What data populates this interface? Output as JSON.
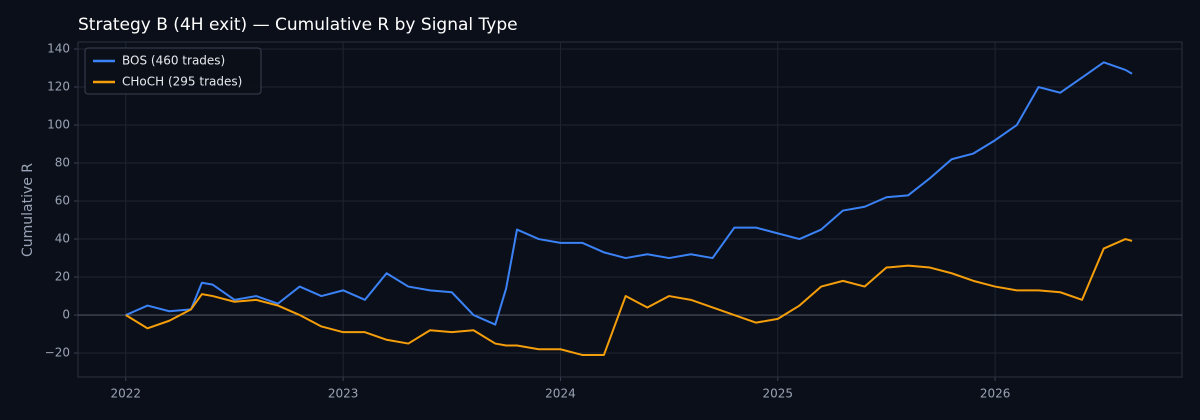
{
  "chart_data": {
    "type": "line",
    "title": "Strategy B (4H exit) — Cumulative R by Signal Type",
    "ylabel": "Cumulative R",
    "x": [
      2022,
      2022.1,
      2022.2,
      2022.3,
      2022.35,
      2022.4,
      2022.5,
      2022.6,
      2022.7,
      2022.8,
      2022.9,
      2023,
      2023.1,
      2023.2,
      2023.3,
      2023.4,
      2023.5,
      2023.6,
      2023.7,
      2023.75,
      2023.8,
      2023.9,
      2024,
      2024.1,
      2024.2,
      2024.3,
      2024.4,
      2024.5,
      2024.6,
      2024.7,
      2024.8,
      2024.9,
      2025,
      2025.1,
      2025.2,
      2025.3,
      2025.4,
      2025.5,
      2025.6,
      2025.7,
      2025.8,
      2025.9,
      2026,
      2026.1,
      2026.2,
      2026.3,
      2026.4,
      2026.5,
      2026.6,
      2026.63
    ],
    "series": [
      {
        "name": "BOS (460 trades)",
        "color": "#3b82f6",
        "values": [
          0,
          5,
          2,
          3,
          17,
          16,
          8,
          10,
          6,
          15,
          10,
          13,
          8,
          22,
          15,
          13,
          12,
          0,
          -5,
          14,
          45,
          40,
          38,
          38,
          33,
          30,
          32,
          30,
          32,
          30,
          46,
          46,
          43,
          40,
          45,
          55,
          57,
          62,
          63,
          72,
          82,
          85,
          92,
          100,
          120,
          117,
          125,
          133,
          129,
          127
        ]
      },
      {
        "name": "CHoCH (295 trades)",
        "color": "#f59e0b",
        "values": [
          0,
          -7,
          -3,
          3,
          11,
          10,
          7,
          8,
          5,
          0,
          -6,
          -9,
          -9,
          -13,
          -15,
          -8,
          -9,
          -8,
          -15,
          -16,
          -16,
          -18,
          -18,
          -21,
          -21,
          10,
          4,
          10,
          8,
          4,
          0,
          -4,
          -2,
          5,
          15,
          18,
          15,
          25,
          26,
          25,
          22,
          18,
          15,
          13,
          13,
          12,
          8,
          35,
          40,
          39
        ]
      }
    ],
    "xlim": [
      2021.78,
      2026.86
    ],
    "xticks": [
      2022,
      2023,
      2024,
      2025,
      2026
    ],
    "ylim": [
      -32.6,
      143.7
    ],
    "yticks": [
      {
        "value": -20,
        "label": "−20"
      },
      0,
      20,
      40,
      60,
      80,
      100,
      120,
      140
    ],
    "axhline": 0,
    "grid": true,
    "legend": "upper-left"
  }
}
